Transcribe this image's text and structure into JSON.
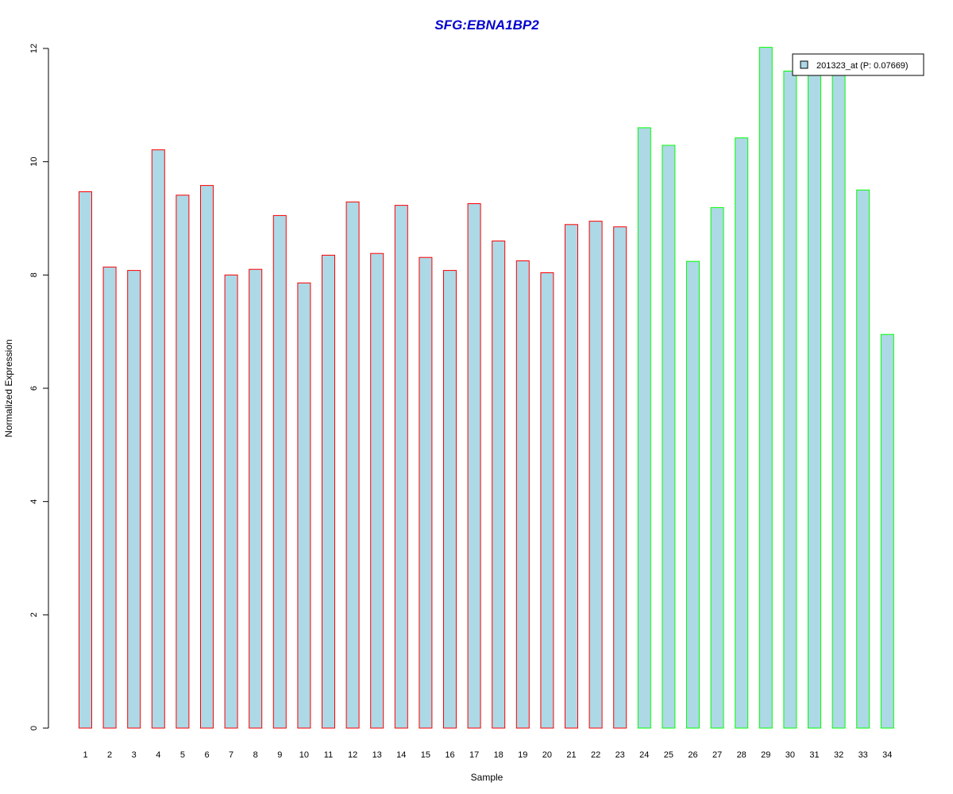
{
  "chart_data": {
    "type": "bar",
    "title": "SFG:EBNA1BP2",
    "xlabel": "Sample",
    "ylabel": "Normalized Expression",
    "ylim": [
      0,
      12
    ],
    "yticks": [
      0,
      2,
      4,
      6,
      8,
      10,
      12
    ],
    "categories": [
      "1",
      "2",
      "3",
      "4",
      "5",
      "6",
      "7",
      "8",
      "9",
      "10",
      "11",
      "12",
      "13",
      "14",
      "15",
      "16",
      "17",
      "18",
      "19",
      "20",
      "21",
      "22",
      "23",
      "24",
      "25",
      "26",
      "27",
      "28",
      "29",
      "30",
      "31",
      "32",
      "33",
      "34"
    ],
    "series": [
      {
        "name": "201323_at (P: 0.07669)",
        "values": [
          9.47,
          8.14,
          8.08,
          10.21,
          9.41,
          9.58,
          8.0,
          8.1,
          9.05,
          7.86,
          8.35,
          9.29,
          8.38,
          9.23,
          8.31,
          8.08,
          9.26,
          8.6,
          8.25,
          8.04,
          8.89,
          8.95,
          8.85,
          10.6,
          10.29,
          8.24,
          9.19,
          10.42,
          12.02,
          11.6,
          11.6,
          11.6,
          9.5,
          6.95
        ]
      }
    ],
    "bar_fill": "#add8e6",
    "bar_border_colors": [
      "#ff0000",
      "#ff0000",
      "#ff0000",
      "#ff0000",
      "#ff0000",
      "#ff0000",
      "#ff0000",
      "#ff0000",
      "#ff0000",
      "#ff0000",
      "#ff0000",
      "#ff0000",
      "#ff0000",
      "#ff0000",
      "#ff0000",
      "#ff0000",
      "#ff0000",
      "#ff0000",
      "#ff0000",
      "#ff0000",
      "#ff0000",
      "#ff0000",
      "#ff0000",
      "#00ff00",
      "#00ff00",
      "#00ff00",
      "#00ff00",
      "#00ff00",
      "#00ff00",
      "#00ff00",
      "#00ff00",
      "#00ff00",
      "#00ff00",
      "#00ff00"
    ],
    "title_color": "#0000cd",
    "legend_position": "top-right",
    "grid": false
  }
}
